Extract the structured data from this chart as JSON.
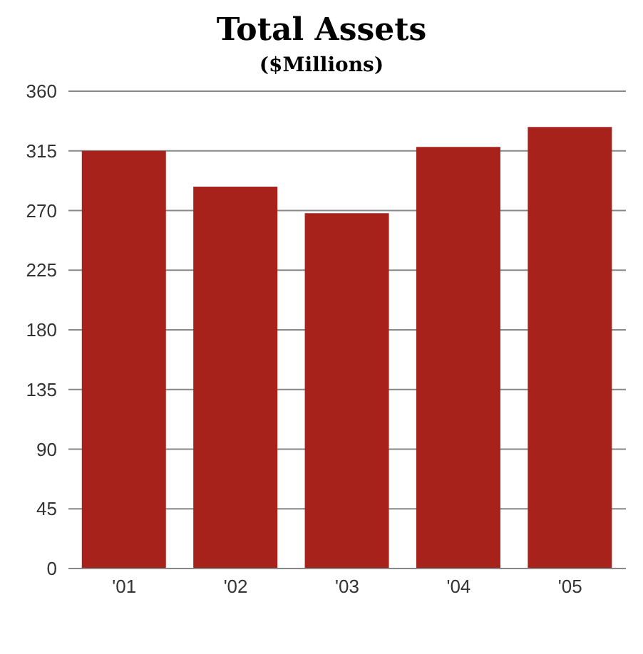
{
  "chart_data": {
    "type": "bar",
    "title": "Total Assets",
    "subtitle": "($Millions)",
    "categories": [
      "'01",
      "'02",
      "'03",
      "'04",
      "'05"
    ],
    "values": [
      315,
      288,
      268,
      318,
      333
    ],
    "color": "#a8221c",
    "ylim": [
      0,
      360
    ],
    "yticks": [
      0,
      45,
      90,
      135,
      180,
      225,
      270,
      315,
      360
    ],
    "grid": "y"
  }
}
